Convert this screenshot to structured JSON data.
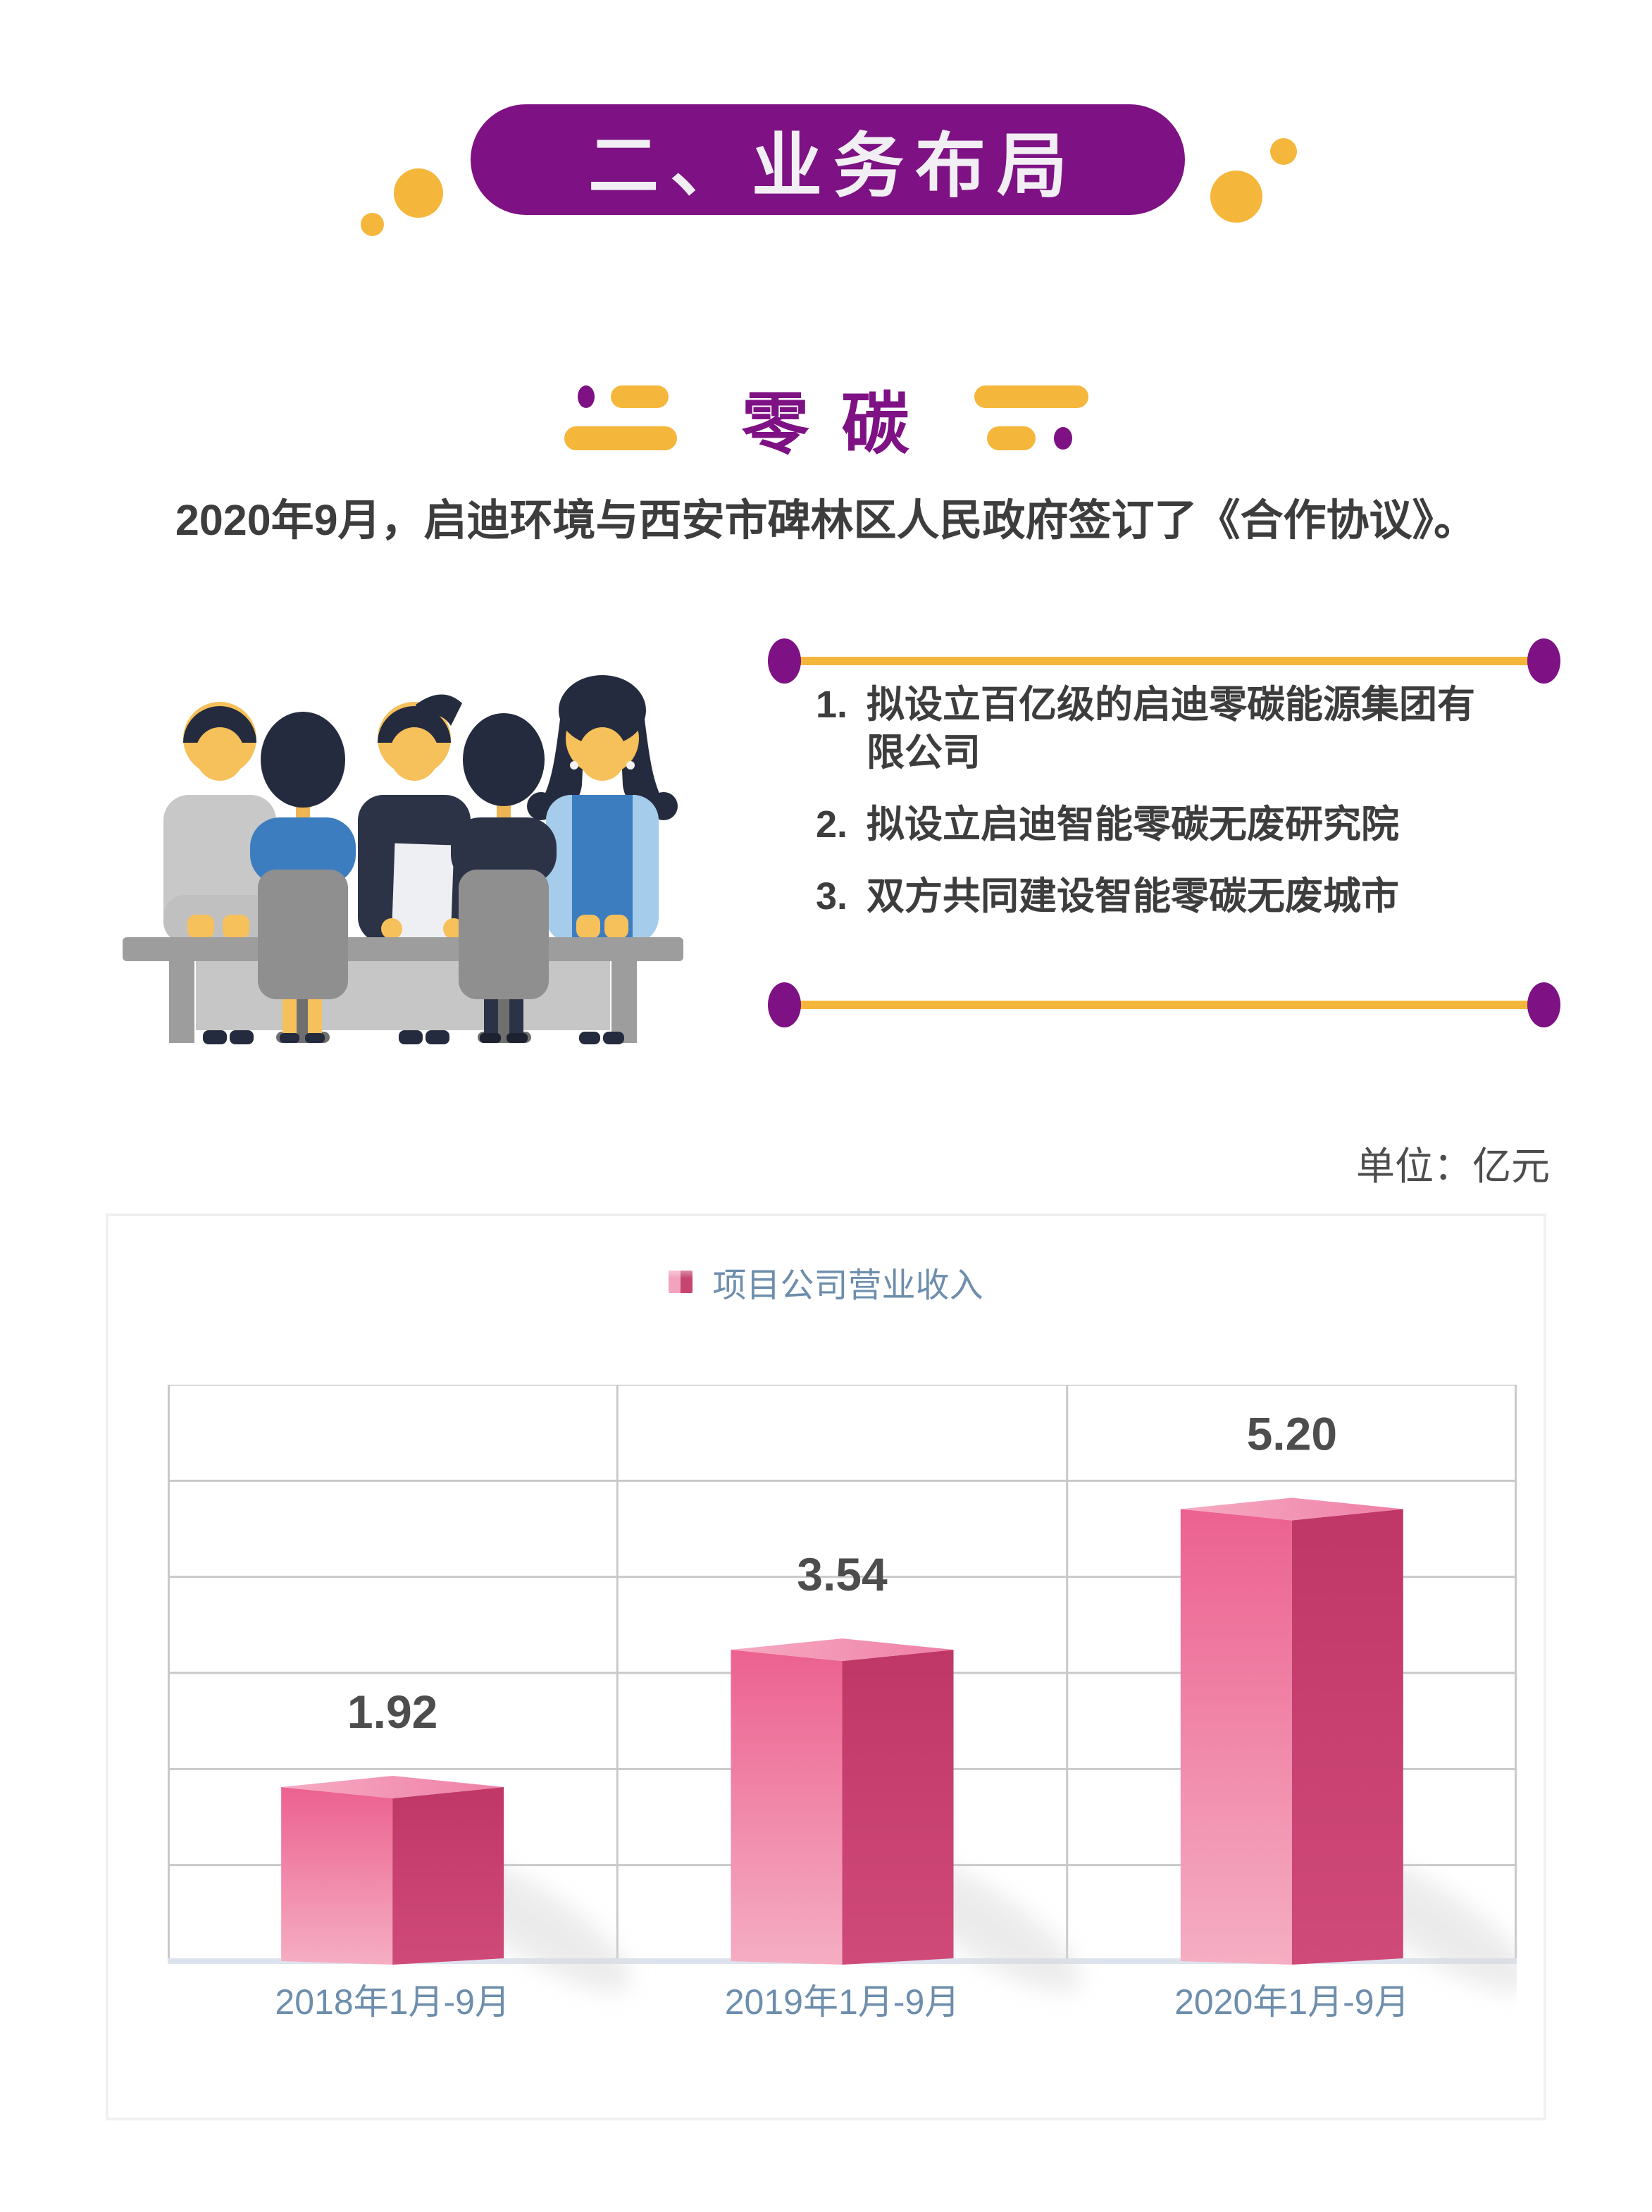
{
  "colors": {
    "purple": "#7e1184",
    "yellow": "#f5b73b",
    "ink": "#3d3d3d",
    "slate": "#6d8eac",
    "labelInk": "#4d4d4d",
    "grid": "#c9c9c9",
    "axis": "#dde3ee",
    "cardBorder": "#f0f0f0",
    "barLightTop": "#ec6190",
    "barLightBottom": "#f5aec3",
    "barDarkTop": "#bf3767",
    "barDarkBottom": "#d04a79",
    "barTopLeft": "#f6abc2",
    "barTopRight": "#ef7fa6",
    "legendLight": "#f2a3bd",
    "legendDark": "#c64671",
    "shadow": "#d9d9d9"
  },
  "header": {
    "title": "二、业务布局"
  },
  "section": {
    "title": "零碳"
  },
  "intro": {
    "text": "2020年9月，启迪环境与西安市碑林区人民政府签订了《合作协议》。"
  },
  "agreement": {
    "items": [
      {
        "num": "1.",
        "text": "拟设立百亿级的启迪零碳能源集团有限公司"
      },
      {
        "num": "2.",
        "text": "拟设立启迪智能零碳无废研究院"
      },
      {
        "num": "3.",
        "text": "双方共同建设智能零碳无废城市"
      }
    ]
  },
  "unit_label": "单位：亿元",
  "illustration": {
    "alt": "五人会议场景插画"
  },
  "chart_data": {
    "type": "bar",
    "bar_style": "3d",
    "title": "",
    "legend": "项目公司营业收入",
    "legend_position": "top-center",
    "categories": [
      "2018年1月-9月",
      "2019年1月-9月",
      "2020年1月-9月"
    ],
    "values": [
      1.92,
      3.54,
      5.2
    ],
    "labels": [
      "1.92",
      "3.54",
      "5.20"
    ],
    "unit": "亿元",
    "xlabel": "",
    "ylabel": "",
    "ylim": [
      0,
      6.8
    ],
    "grid": true,
    "gridline_rows": 6
  }
}
